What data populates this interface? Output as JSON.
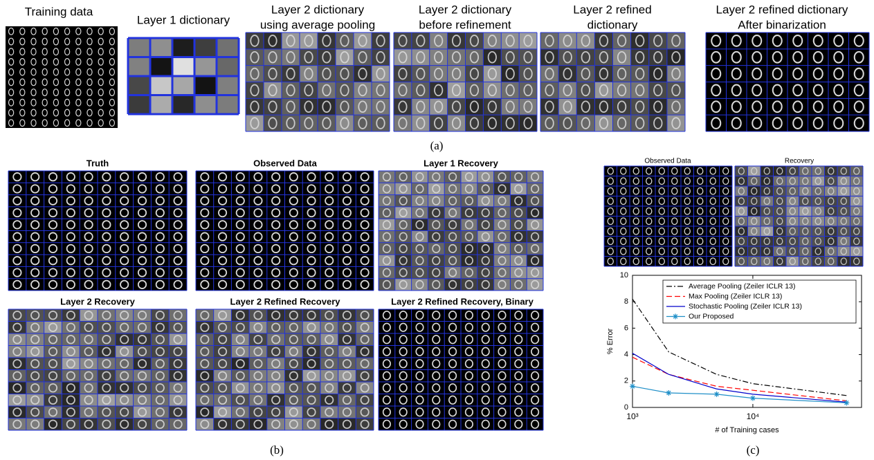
{
  "panel_a": {
    "caption": "(a)",
    "panels": [
      {
        "title": [
          "Training data"
        ]
      },
      {
        "title": [
          "Layer 1 dictionary"
        ]
      },
      {
        "title": [
          "Layer 2 dictionary",
          "using average pooling"
        ]
      },
      {
        "title": [
          "Layer 2 dictionary",
          "before refinement"
        ]
      },
      {
        "title": [
          "Layer 2 refined",
          "dictionary"
        ]
      },
      {
        "title": [
          "Layer 2 refined dictionary",
          "After binarization"
        ]
      }
    ]
  },
  "panel_b": {
    "caption": "(b)",
    "panels": [
      {
        "title": [
          "Truth"
        ]
      },
      {
        "title": [
          "Observed Data"
        ]
      },
      {
        "title": [
          "Layer 1 Recovery"
        ]
      },
      {
        "title": [
          "Layer 2 Recovery"
        ]
      },
      {
        "title": [
          "Layer 2 Refined Recovery"
        ]
      },
      {
        "title": [
          "Layer 2 Refined Recovery, Binary"
        ]
      }
    ]
  },
  "panel_c": {
    "caption": "(c)",
    "panels": [
      {
        "title": [
          "Observed Data"
        ]
      },
      {
        "title": [
          "Recovery"
        ]
      }
    ]
  },
  "chart_data": {
    "type": "line",
    "xlabel": "# of Training cases",
    "ylabel": "% Error",
    "x": [
      1000,
      2000,
      5000,
      10000,
      60000
    ],
    "log_x": true,
    "xlim": [
      1000,
      80000
    ],
    "xticks": [
      {
        "value": 1000,
        "label": "10³"
      },
      {
        "value": 10000,
        "label": "10⁴"
      }
    ],
    "ylim": [
      0,
      10
    ],
    "yticks": [
      0,
      2,
      4,
      6,
      8,
      10
    ],
    "legend": "upper right",
    "series": [
      {
        "name": "Average Pooling (Zeiler ICLR 13)",
        "color": "#000000",
        "linestyle": "dash-dot",
        "values": [
          8.2,
          4.2,
          2.5,
          1.8,
          0.9
        ]
      },
      {
        "name": "Max Pooling (Zeiler ICLR 13)",
        "color": "#ff0000",
        "linestyle": "dashed",
        "values": [
          3.8,
          2.5,
          1.6,
          1.3,
          0.5
        ]
      },
      {
        "name": "Stochastic Pooling (Zeiler ICLR 13)",
        "color": "#0000cc",
        "linestyle": "solid",
        "values": [
          4.1,
          2.5,
          1.4,
          1.0,
          0.4
        ]
      },
      {
        "name": "Our Proposed",
        "color": "#1f8fc8",
        "linestyle": "solid",
        "marker": "*",
        "values": [
          1.6,
          1.1,
          1.0,
          0.7,
          0.35
        ]
      }
    ]
  }
}
